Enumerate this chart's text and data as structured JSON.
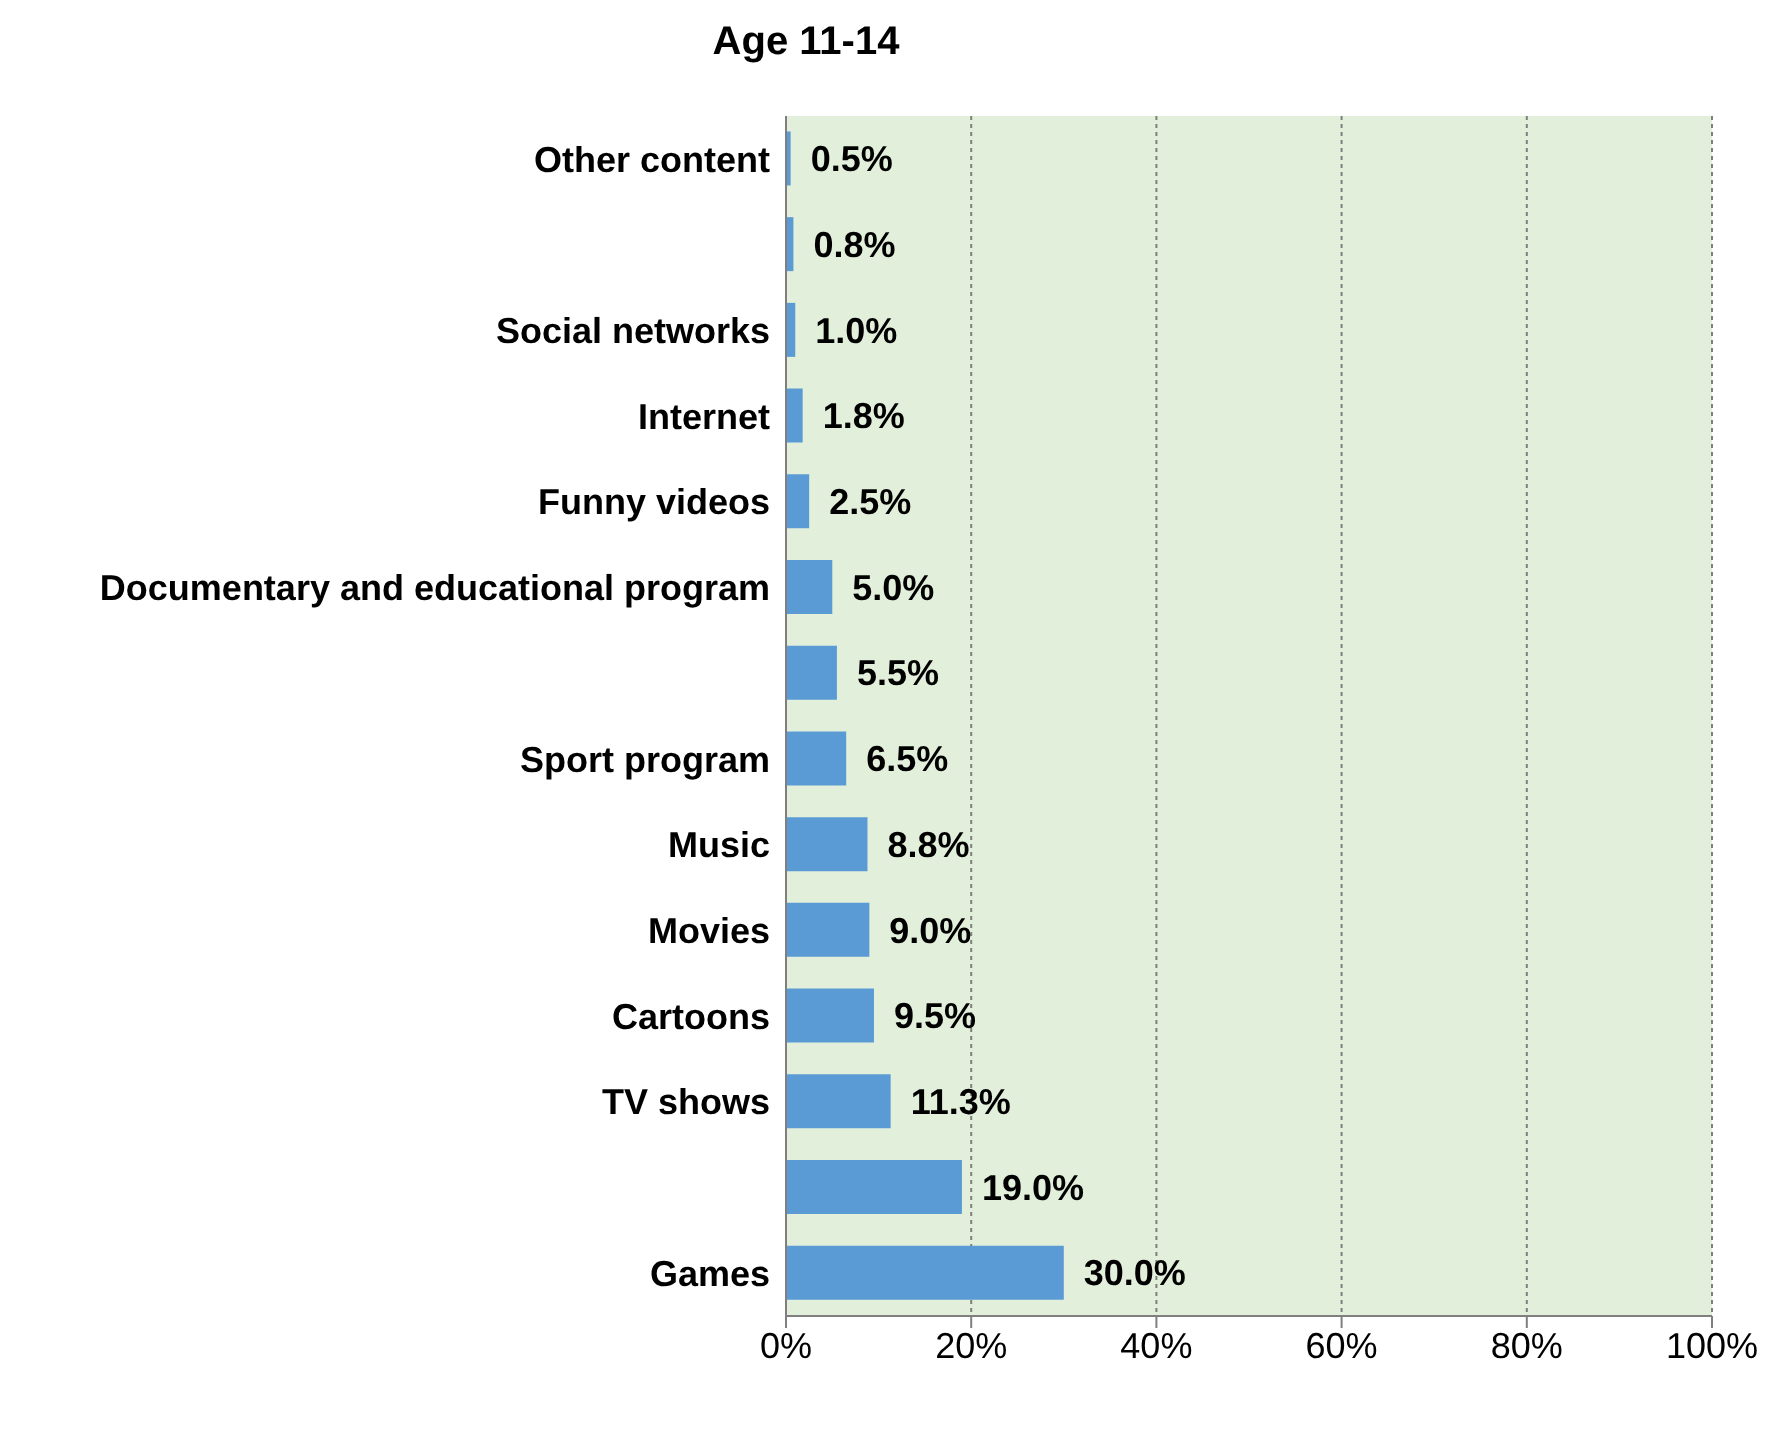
{
  "chart_data": {
    "type": "bar",
    "orientation": "horizontal",
    "title": "Age 11-14",
    "categories": [
      "Other content",
      null,
      "Social networks",
      "Internet",
      "Funny videos",
      "Documentary and educational program",
      null,
      "Sport program",
      "Music",
      "Movies",
      "Cartoons",
      "TV shows",
      null,
      "Games"
    ],
    "values": [
      0.5,
      0.8,
      1.0,
      1.8,
      2.5,
      5.0,
      5.5,
      6.5,
      8.8,
      9.0,
      9.5,
      11.3,
      19.0,
      30.0
    ],
    "value_labels": [
      "0.5%",
      "0.8%",
      "1.0%",
      "1.8%",
      "2.5%",
      "5.0%",
      "5.5%",
      "6.5%",
      "8.8%",
      "9.0%",
      "9.5%",
      "11.3%",
      "19.0%",
      "30.0%"
    ],
    "color": "#5b9bd5",
    "xlim": [
      0,
      100
    ],
    "xticks": [
      {
        "value": 0,
        "label": "0%"
      },
      {
        "value": 20,
        "label": "20%"
      },
      {
        "value": 40,
        "label": "40%"
      },
      {
        "value": 60,
        "label": "60%"
      },
      {
        "value": 80,
        "label": "80%"
      },
      {
        "value": 100,
        "label": "100%"
      }
    ],
    "grid": "x"
  }
}
